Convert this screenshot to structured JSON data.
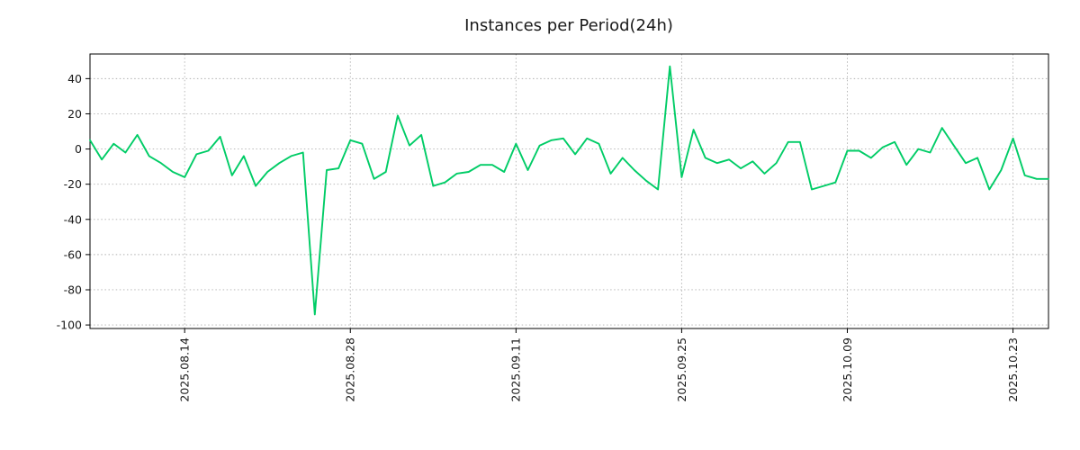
{
  "chart_data": {
    "type": "line",
    "title": "Instances per Period(24h)",
    "series_name": "instances",
    "line_color": "#00cc66",
    "grid": true,
    "legend": "none",
    "ylim": [
      -102,
      54
    ],
    "xlim": [
      0,
      81
    ],
    "y_ticks": [
      40,
      20,
      0,
      -20,
      -40,
      -60,
      -80,
      -100
    ],
    "x_tick_indices": [
      8,
      22,
      36,
      50,
      64,
      78
    ],
    "x_tick_labels": [
      "2025.08.14",
      "2025.08.28",
      "2025.09.11",
      "2025.09.25",
      "2025.10.09",
      "2025.10.23"
    ],
    "values": [
      5,
      -6,
      3,
      -2,
      8,
      -4,
      -8,
      -13,
      -16,
      -3,
      -1,
      7,
      -15,
      -4,
      -21,
      -13,
      -8,
      -4,
      -2,
      -94,
      -12,
      -11,
      5,
      3,
      -17,
      -13,
      19,
      2,
      8,
      -21,
      -19,
      -14,
      -13,
      -9,
      -9,
      -13,
      3,
      -12,
      2,
      5,
      6,
      -3,
      6,
      3,
      -14,
      -5,
      -12,
      -18,
      -23,
      47,
      -16,
      11,
      -5,
      -8,
      -6,
      -11,
      -7,
      -14,
      -8,
      4,
      4,
      -23,
      -21,
      -19,
      -1,
      -1,
      -5,
      1,
      4,
      -9,
      0,
      -2,
      12,
      2,
      -8,
      -5,
      -23,
      -12,
      6,
      -15,
      -17,
      -17
    ]
  }
}
